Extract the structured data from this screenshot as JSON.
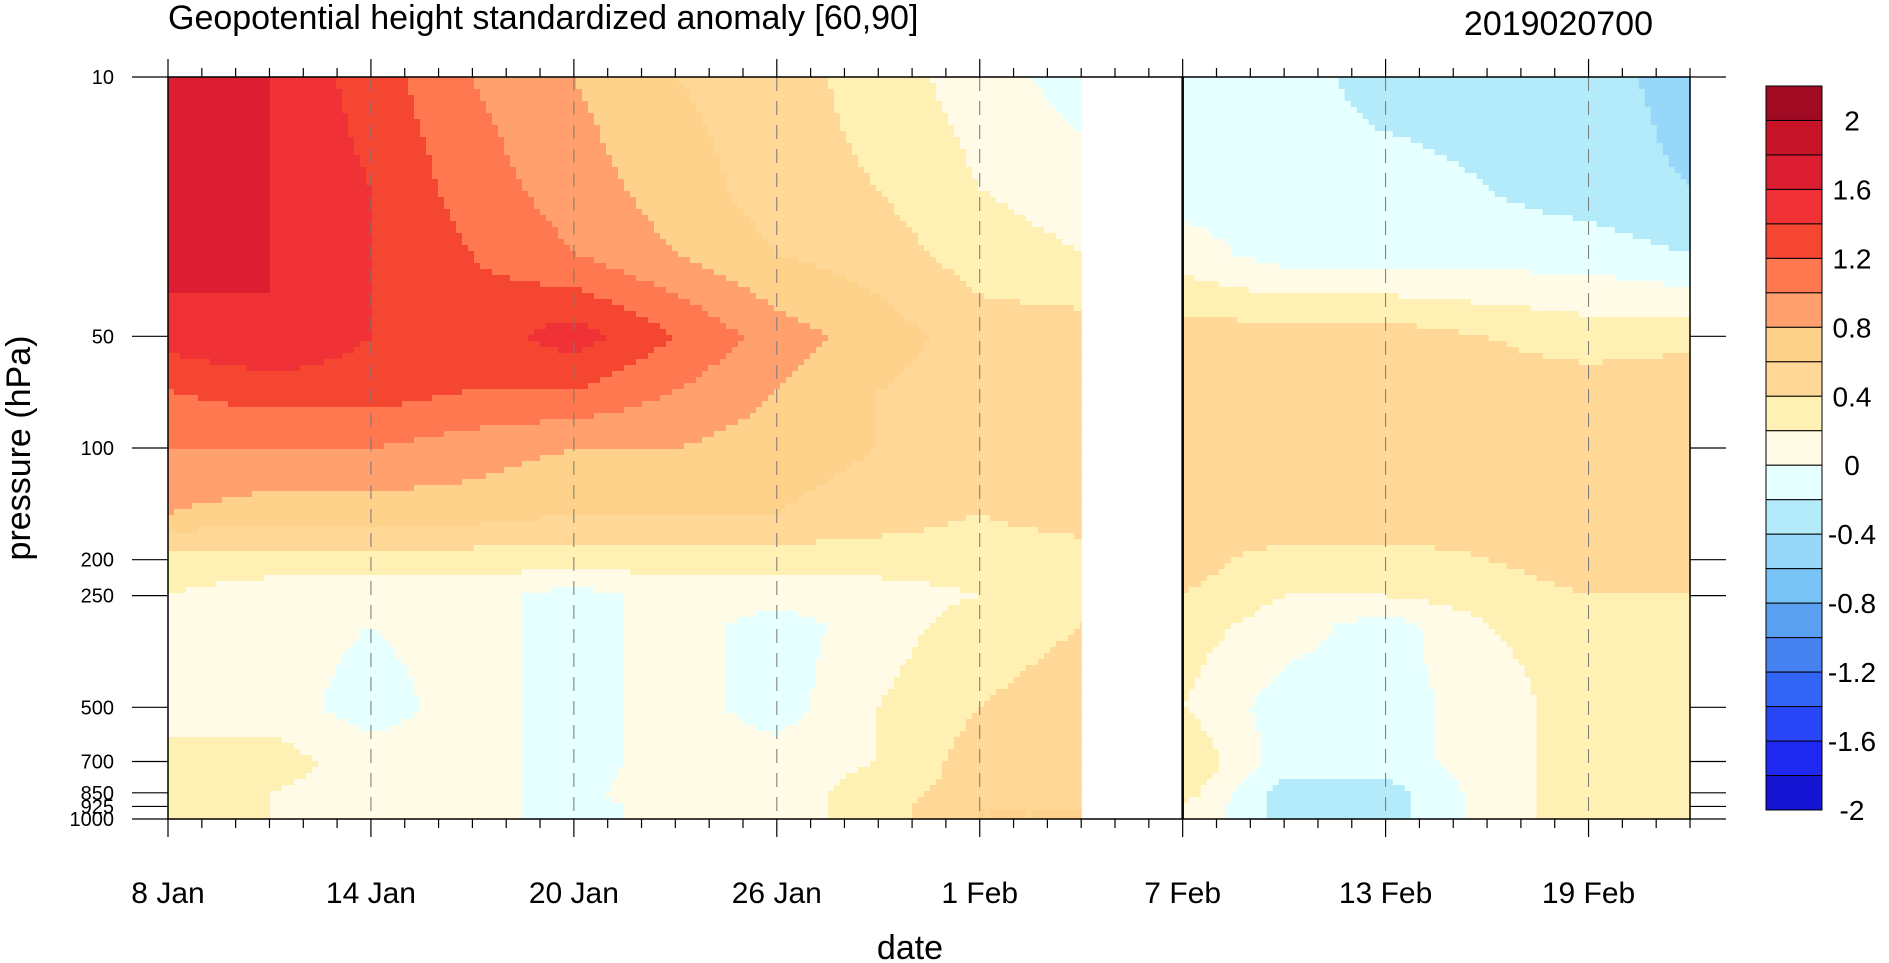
{
  "chart_data": {
    "type": "heatmap",
    "title": "Geopotential height standardized anomaly [60,90]",
    "date_stamp": "2019020700",
    "xlabel": "date",
    "ylabel": "pressure (hPa)",
    "x_ticks": [
      "8 Jan",
      "14 Jan",
      "20 Jan",
      "26 Jan",
      "1 Feb",
      "7 Feb",
      "13 Feb",
      "19 Feb"
    ],
    "x_tick_days": [
      0,
      6,
      12,
      18,
      24,
      30,
      36,
      42
    ],
    "x_range_days": [
      0,
      45
    ],
    "analysis_end_day": 27,
    "forecast_start_day": 30,
    "y_ticks": [
      10,
      50,
      100,
      200,
      250,
      500,
      700,
      850,
      925,
      1000
    ],
    "y_tick_labels": [
      "10",
      "50",
      "100",
      "200",
      "250",
      "500",
      "700",
      "850",
      "925",
      "1000"
    ],
    "y_scale": "log",
    "y_range": [
      1000,
      10
    ],
    "colorbar": {
      "labels": [
        "2",
        "1.6",
        "1.2",
        "0.8",
        "0.4",
        "0",
        "-0.4",
        "-0.8",
        "-1.2",
        "-1.6",
        "-2"
      ],
      "levels": [
        -2.0,
        -1.8,
        -1.6,
        -1.4,
        -1.2,
        -1.0,
        -0.8,
        -0.6,
        -0.4,
        -0.2,
        0.0,
        0.2,
        0.4,
        0.6,
        0.8,
        1.0,
        1.2,
        1.4,
        1.6,
        1.8,
        2.0
      ],
      "colors": [
        "#1414d2",
        "#1e28f0",
        "#2846f5",
        "#3264f5",
        "#4682f0",
        "#5aa0f0",
        "#78c3f5",
        "#96d7fa",
        "#b4ebfa",
        "#e6ffff",
        "#fffbe6",
        "#fff0b4",
        "#ffd796",
        "#ffd28c",
        "#ffa06e",
        "#ff7850",
        "#f54632",
        "#f03237",
        "#dc1e32",
        "#c81428",
        "#a00a23"
      ]
    },
    "analysis_field": {
      "pressure_levels": [
        10,
        20,
        30,
        50,
        70,
        100,
        150,
        200,
        250,
        300,
        500,
        700,
        850,
        925,
        1000
      ],
      "day_columns": [
        0,
        3,
        6,
        9,
        12,
        15,
        18,
        21,
        24,
        27
      ],
      "values": [
        [
          1.7,
          1.6,
          1.3,
          1.0,
          0.8,
          0.6,
          0.5,
          0.3,
          0.1,
          -0.1
        ],
        [
          1.7,
          1.6,
          1.4,
          1.1,
          0.9,
          0.7,
          0.5,
          0.4,
          0.2,
          0.1
        ],
        [
          1.7,
          1.6,
          1.4,
          1.2,
          1.0,
          0.8,
          0.6,
          0.5,
          0.3,
          0.2
        ],
        [
          1.5,
          1.6,
          1.4,
          1.3,
          1.5,
          1.2,
          0.9,
          0.7,
          0.5,
          0.5
        ],
        [
          1.2,
          1.3,
          1.3,
          1.2,
          1.2,
          1.0,
          0.8,
          0.6,
          0.5,
          0.5
        ],
        [
          1.0,
          1.0,
          1.0,
          0.9,
          0.8,
          0.8,
          0.7,
          0.6,
          0.5,
          0.5
        ],
        [
          0.8,
          0.7,
          0.7,
          0.7,
          0.6,
          0.6,
          0.6,
          0.5,
          0.4,
          0.5
        ],
        [
          0.3,
          0.3,
          0.3,
          0.3,
          0.3,
          0.3,
          0.3,
          0.3,
          0.3,
          0.3
        ],
        [
          0.2,
          0.1,
          0.1,
          0.1,
          -0.1,
          0.1,
          0.1,
          0.1,
          0.2,
          0.3
        ],
        [
          0.1,
          0.1,
          0.0,
          0.1,
          -0.1,
          0.1,
          -0.1,
          0.1,
          0.3,
          0.4
        ],
        [
          0.2,
          0.1,
          -0.1,
          0.1,
          -0.1,
          0.1,
          -0.1,
          0.2,
          0.4,
          0.5
        ],
        [
          0.2,
          0.3,
          0.1,
          0.1,
          -0.1,
          0.1,
          0.1,
          0.2,
          0.5,
          0.5
        ],
        [
          0.3,
          0.2,
          0.1,
          0.1,
          -0.1,
          0.2,
          0.1,
          0.3,
          0.5,
          0.6
        ],
        [
          0.2,
          0.2,
          0.1,
          0.1,
          -0.1,
          0.1,
          0.1,
          0.3,
          0.6,
          0.6
        ],
        [
          0.2,
          0.2,
          0.1,
          0.1,
          -0.1,
          0.1,
          0.1,
          0.3,
          0.6,
          0.6
        ]
      ]
    },
    "forecast_field": {
      "pressure_levels": [
        10,
        20,
        30,
        50,
        70,
        100,
        150,
        200,
        250,
        300,
        500,
        700,
        850,
        925,
        1000
      ],
      "day_columns": [
        30,
        33,
        36,
        39,
        42,
        45
      ],
      "values": [
        [
          -0.1,
          -0.1,
          -0.3,
          -0.3,
          -0.3,
          -0.5
        ],
        [
          -0.1,
          -0.1,
          -0.1,
          -0.2,
          -0.3,
          -0.4
        ],
        [
          0.1,
          -0.1,
          -0.1,
          -0.1,
          -0.1,
          -0.2
        ],
        [
          0.5,
          0.5,
          0.5,
          0.4,
          0.3,
          0.3
        ],
        [
          0.5,
          0.5,
          0.5,
          0.5,
          0.5,
          0.6
        ],
        [
          0.5,
          0.5,
          0.5,
          0.5,
          0.5,
          0.5
        ],
        [
          0.5,
          0.6,
          0.6,
          0.5,
          0.5,
          0.5
        ],
        [
          0.5,
          0.3,
          0.3,
          0.4,
          0.5,
          0.5
        ],
        [
          0.4,
          0.2,
          0.2,
          0.3,
          0.4,
          0.4
        ],
        [
          0.3,
          0.1,
          -0.1,
          0.2,
          0.3,
          0.3
        ],
        [
          0.2,
          -0.1,
          -0.1,
          0.1,
          0.3,
          0.3
        ],
        [
          0.4,
          -0.1,
          -0.1,
          0.1,
          0.3,
          0.3
        ],
        [
          0.3,
          -0.3,
          -0.3,
          0.1,
          0.3,
          0.4
        ],
        [
          0.2,
          -0.3,
          -0.3,
          0.1,
          0.3,
          0.4
        ],
        [
          0.2,
          -0.3,
          -0.3,
          0.1,
          0.3,
          0.4
        ]
      ]
    }
  }
}
